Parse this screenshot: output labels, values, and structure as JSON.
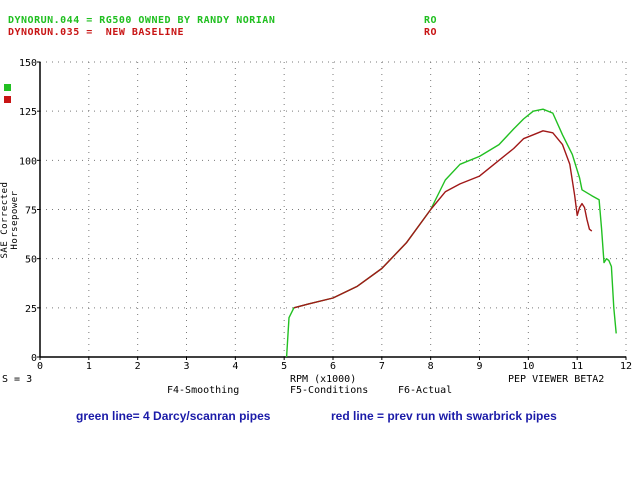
{
  "header": {
    "run1_label": "DYNORUN.044 = RG500 OWNED BY RANDY NORIAN",
    "run1_tag": "RO",
    "run2_label": "DYNORUN.035 =  NEW BASELINE",
    "run2_tag": "RO"
  },
  "footer": {
    "smoothing_value": "S = 3",
    "menu_smoothing": "F4-Smoothing",
    "menu_conditions": "F5-Conditions",
    "menu_actual": "F6-Actual",
    "viewer_name": "PEP VIEWER BETA2"
  },
  "captions": {
    "green": "green line= 4 Darcy/scanran pipes",
    "red": "red line = prev run with swarbrick pipes"
  },
  "colors": {
    "green": "#22c022",
    "red": "#a01818",
    "caption": "#1a1aa8"
  },
  "chart_data": {
    "type": "line",
    "xlabel": "RPM (x1000)",
    "ylabel": "SAE Corrected Horsepower",
    "xlim": [
      0,
      12
    ],
    "ylim": [
      0,
      150
    ],
    "xticks": [
      "0",
      "1",
      "2",
      "3",
      "4",
      "5",
      "6",
      "7",
      "8",
      "9",
      "10",
      "11",
      "12"
    ],
    "yticks": [
      "0",
      "25",
      "50",
      "75",
      "100",
      "125",
      "150"
    ],
    "grid": true,
    "series": [
      {
        "color": "#22c022",
        "x": [
          5.05,
          5.1,
          5.2,
          5.5,
          6.0,
          6.5,
          7.0,
          7.5,
          8.0,
          8.3,
          8.6,
          9.0,
          9.4,
          9.7,
          9.9,
          10.1,
          10.3,
          10.5,
          10.7,
          10.9,
          11.05,
          11.1,
          11.3,
          11.45,
          11.5,
          11.55,
          11.6,
          11.65,
          11.7,
          11.75,
          11.8
        ],
        "y": [
          0,
          20,
          25,
          27,
          30,
          36,
          45,
          58,
          75,
          90,
          98,
          102,
          108,
          116,
          121,
          125,
          126,
          124,
          113,
          103,
          91,
          85,
          82,
          80,
          65,
          48,
          50,
          49,
          46,
          25,
          12
        ]
      },
      {
        "color": "#a01818",
        "x": [
          5.2,
          5.5,
          6.0,
          6.5,
          7.0,
          7.5,
          8.0,
          8.3,
          8.6,
          9.0,
          9.4,
          9.7,
          9.9,
          10.1,
          10.3,
          10.5,
          10.7,
          10.85,
          10.95,
          11.0,
          11.05,
          11.1,
          11.15,
          11.2,
          11.25,
          11.3
        ],
        "y": [
          25,
          27,
          30,
          36,
          45,
          58,
          75,
          84,
          88,
          92,
          100,
          106,
          111,
          113,
          115,
          114,
          108,
          98,
          82,
          72,
          76,
          78,
          76,
          70,
          65,
          64
        ]
      }
    ]
  }
}
